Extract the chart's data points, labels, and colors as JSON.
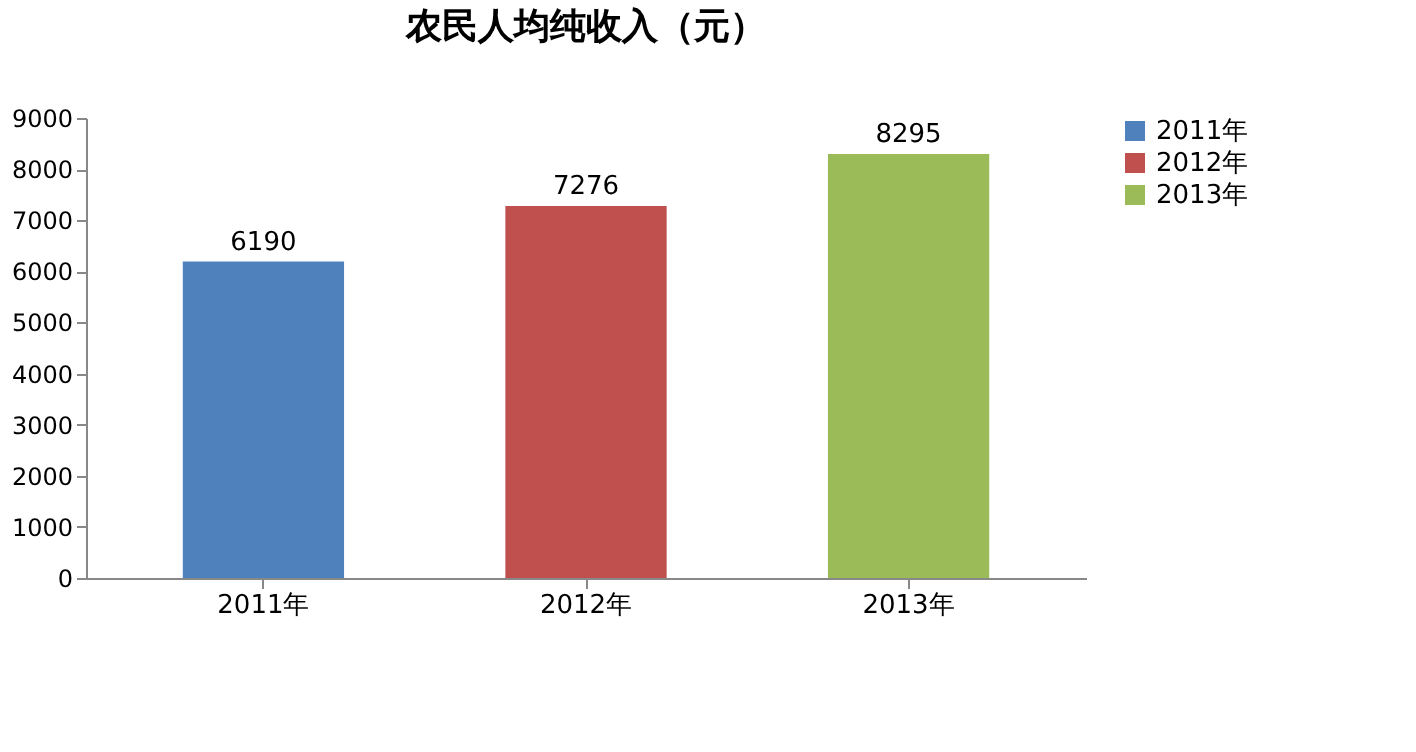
{
  "chart_data": {
    "type": "bar",
    "title": "农民人均纯收入（元）",
    "categories": [
      "2011年",
      "2012年",
      "2013年"
    ],
    "series": [
      {
        "name": "2011年",
        "color": "#4f81bd",
        "values": [
          6190,
          null,
          null
        ]
      },
      {
        "name": "2012年",
        "color": "#c0504d",
        "values": [
          null,
          7276,
          null
        ]
      },
      {
        "name": "2013年",
        "color": "#9bbb59",
        "values": [
          null,
          null,
          8295
        ]
      }
    ],
    "ylim": [
      0,
      9000
    ],
    "yticks": [
      0,
      1000,
      2000,
      3000,
      4000,
      5000,
      6000,
      7000,
      8000,
      9000
    ],
    "grid": false,
    "legend": "right",
    "data_labels": true
  }
}
